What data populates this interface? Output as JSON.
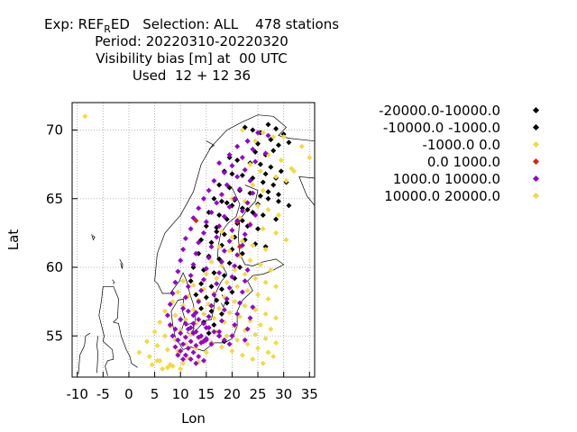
{
  "title": {
    "line1_prefix": "Exp: REF",
    "line1_sub": "R",
    "line1_suffix": "ED   Selection: ALL    478 stations",
    "line2": "Period: 20220310-20220320",
    "line3": "Visibility bias [m] at  00 UTC",
    "line4": "Used  12 + 12 36"
  },
  "chart_data": {
    "type": "scatter",
    "xlabel": "Lon",
    "ylabel": "Lat",
    "xlim": [
      -11,
      36
    ],
    "ylim": [
      52,
      72
    ],
    "xticks": [
      "-10",
      "-5",
      "0",
      "5",
      "10",
      "15",
      "20",
      "25",
      "30",
      "35"
    ],
    "yticks": [
      "55",
      "60",
      "65",
      "70"
    ],
    "grid": true,
    "legend_position": "right",
    "series": [
      {
        "name": "-20000.0-10000.0",
        "color": "#000000",
        "x": [],
        "y": []
      },
      {
        "name": "-10000.0 -1000.0",
        "color": "#000000",
        "x": [
          22.5,
          24.0,
          25.5,
          27.0,
          28.5,
          30.0,
          23.0,
          25.0,
          27.5,
          29.0,
          31.0,
          24.5,
          26.5,
          28.0,
          19.5,
          21.0,
          23.5,
          25.5,
          27.5,
          29.5,
          18.5,
          20.0,
          22.0,
          24.0,
          26.0,
          28.0,
          17.5,
          19.5,
          21.5,
          23.5,
          25.5,
          27.0,
          29.0,
          16.5,
          18.0,
          20.0,
          22.0,
          24.0,
          26.0,
          28.5,
          15.5,
          17.5,
          19.0,
          21.0,
          23.0,
          25.0,
          15.0,
          17.0,
          18.5,
          20.5,
          22.5,
          24.5,
          26.5,
          14.0,
          16.0,
          18.0,
          20.0,
          22.0,
          13.5,
          15.5,
          17.5,
          19.5,
          21.5,
          12.5,
          14.5,
          16.5,
          18.5,
          20.5,
          12.0,
          14.0,
          16.0,
          18.0,
          20.0,
          13.0,
          15.0,
          17.0,
          19.0,
          14.0,
          16.0,
          18.0,
          14.5,
          16.5,
          15.5,
          17.5,
          16.0,
          18.5,
          26.5,
          28.5,
          30.5,
          27.0,
          29.0,
          31.0,
          25.0,
          23.0,
          22.0,
          20.5,
          19.0,
          17.0
        ],
        "y": [
          70.2,
          70.0,
          69.8,
          70.4,
          70.1,
          69.7,
          69.2,
          69.0,
          69.3,
          68.9,
          69.1,
          68.4,
          68.2,
          68.5,
          68.0,
          67.8,
          67.6,
          67.5,
          67.3,
          67.0,
          67.0,
          66.8,
          66.7,
          66.5,
          66.2,
          66.0,
          66.0,
          65.8,
          65.6,
          65.4,
          65.2,
          65.0,
          64.8,
          65.0,
          64.8,
          64.5,
          64.3,
          64.0,
          63.8,
          63.5,
          64.0,
          63.8,
          63.5,
          63.2,
          63.0,
          62.8,
          63.0,
          62.6,
          62.4,
          62.2,
          62.0,
          61.7,
          61.5,
          62.0,
          61.8,
          61.6,
          61.3,
          61.0,
          61.0,
          60.8,
          60.6,
          60.3,
          60.0,
          60.0,
          59.8,
          59.6,
          59.4,
          59.2,
          59.0,
          58.8,
          58.6,
          58.4,
          58.2,
          58.0,
          57.8,
          57.6,
          57.4,
          57.0,
          56.8,
          56.6,
          56.0,
          55.8,
          55.2,
          55.0,
          54.5,
          54.6,
          66.8,
          66.5,
          66.2,
          65.5,
          65.3,
          64.5,
          64.6,
          64.2,
          63.4,
          64.9,
          64.7,
          62.9
        ]
      },
      {
        "name": "-1000.0 0.0",
        "color": "#f0dc3c",
        "x": [
          -8.5,
          22.0,
          26.0,
          30.0,
          33.5,
          35.0,
          31.5,
          28.0,
          24.5,
          21.0,
          27.0,
          29.5,
          32.0,
          23.5,
          25.5,
          28.5,
          30.5,
          24.0,
          26.0,
          20.0,
          22.5,
          25.0,
          27.0,
          29.0,
          21.5,
          23.5,
          26.0,
          28.5,
          30.5,
          18.0,
          20.0,
          22.0,
          24.0,
          26.5,
          17.5,
          19.5,
          21.5,
          23.5,
          25.5,
          27.5,
          16.0,
          18.0,
          20.5,
          22.5,
          24.5,
          26.5,
          28.5,
          15.0,
          17.0,
          19.0,
          21.0,
          23.0,
          25.0,
          27.0,
          10.5,
          12.5,
          14.5,
          16.5,
          18.5,
          20.5,
          22.5,
          24.5,
          26.5,
          28.5,
          9.5,
          11.5,
          13.5,
          15.5,
          17.5,
          19.5,
          21.5,
          23.5,
          25.5,
          27.5,
          8.5,
          10.5,
          12.5,
          14.5,
          16.5,
          18.5,
          20.5,
          22.5,
          24.5,
          26.5,
          28.5,
          7.0,
          9.0,
          11.0,
          13.0,
          15.0,
          17.0,
          19.0,
          21.0,
          23.0,
          25.0,
          27.0,
          6.0,
          8.0,
          10.0,
          12.0,
          14.0,
          16.0,
          18.0,
          20.0,
          22.0,
          24.0,
          26.0,
          28.0,
          5.0,
          7.0,
          9.0,
          11.0,
          13.0,
          15.0,
          3.5,
          5.5,
          7.5,
          9.5,
          11.5,
          13.5,
          2.0,
          4.0,
          6.0,
          8.0,
          10.0,
          12.0,
          4.5,
          6.5,
          8.5,
          10.5,
          5.5,
          7.5,
          9.5
        ],
        "y": [
          71.0,
          70.0,
          69.8,
          69.5,
          68.8,
          68.0,
          67.2,
          69.5,
          69.2,
          68.8,
          68.2,
          67.8,
          67.0,
          67.5,
          67.0,
          66.6,
          66.3,
          66.0,
          65.6,
          65.0,
          64.8,
          64.5,
          64.2,
          63.8,
          63.6,
          63.2,
          62.8,
          62.5,
          62.0,
          62.6,
          62.2,
          61.9,
          61.6,
          61.3,
          61.5,
          61.2,
          60.8,
          60.5,
          60.2,
          59.8,
          60.4,
          60.1,
          59.8,
          59.5,
          59.2,
          58.9,
          58.6,
          59.5,
          59.2,
          58.9,
          58.6,
          58.3,
          58.0,
          57.7,
          59.0,
          58.7,
          58.4,
          58.1,
          57.8,
          57.5,
          57.2,
          56.9,
          56.6,
          56.3,
          58.2,
          57.9,
          57.6,
          57.3,
          57.0,
          56.7,
          56.4,
          56.1,
          55.8,
          55.5,
          57.5,
          57.2,
          56.9,
          56.6,
          56.3,
          56.0,
          55.7,
          55.4,
          55.1,
          54.8,
          54.5,
          56.8,
          56.5,
          56.2,
          55.9,
          55.6,
          55.3,
          55.0,
          54.7,
          54.4,
          54.1,
          53.8,
          56.0,
          55.7,
          55.4,
          55.1,
          54.8,
          54.5,
          54.2,
          53.9,
          53.6,
          53.3,
          53.0,
          53.5,
          55.3,
          55.0,
          54.7,
          54.4,
          54.1,
          53.8,
          54.6,
          54.3,
          54.0,
          53.7,
          53.4,
          53.1,
          53.8,
          53.5,
          53.2,
          52.9,
          52.6,
          53.3,
          52.9,
          52.6,
          52.8,
          53.0,
          53.2,
          52.7,
          53.9
        ]
      },
      {
        "name": "0.0 1000.0",
        "color": "#e02000",
        "x": [
          13.0,
          21.0,
          21.5
        ],
        "y": [
          63.4,
          63.3,
          61.5
        ]
      },
      {
        "name": "1000.0 10000.0",
        "color": "#9400d3",
        "x": [
          25.0,
          27.0,
          23.0,
          21.0,
          24.0,
          26.5,
          19.5,
          22.0,
          24.5,
          17.5,
          20.0,
          22.5,
          18.5,
          21.0,
          23.5,
          16.5,
          19.0,
          21.5,
          24.0,
          15.5,
          18.0,
          20.5,
          23.0,
          14.5,
          17.0,
          19.5,
          22.0,
          24.5,
          13.5,
          16.0,
          18.5,
          21.0,
          23.5,
          12.5,
          15.0,
          17.5,
          20.0,
          22.5,
          12.0,
          14.5,
          17.0,
          19.5,
          22.0,
          11.0,
          13.5,
          16.0,
          18.5,
          21.0,
          10.5,
          13.0,
          15.5,
          18.0,
          20.5,
          23.0,
          10.0,
          12.5,
          15.0,
          17.5,
          20.0,
          22.5,
          9.5,
          12.0,
          14.5,
          17.0,
          19.5,
          22.0,
          9.0,
          11.5,
          14.0,
          16.5,
          19.0,
          21.5,
          24.0,
          8.5,
          11.0,
          13.5,
          16.0,
          18.5,
          21.0,
          23.5,
          8.0,
          10.5,
          13.0,
          15.5,
          18.0,
          20.5,
          23.0,
          7.5,
          10.0,
          12.5,
          15.0,
          17.5,
          20.0,
          22.5,
          8.0,
          9.0,
          10.0,
          11.0,
          12.0,
          13.0,
          8.5,
          9.5,
          10.5,
          11.5,
          12.5,
          13.5,
          14.5,
          9.0,
          10.0,
          11.0,
          12.0,
          13.0,
          14.0,
          15.0,
          9.5,
          10.5,
          11.5,
          12.5,
          13.5,
          14.5,
          10.0,
          11.0,
          12.0,
          13.0,
          14.0,
          15.0,
          16.0,
          11.5,
          12.5,
          13.5,
          14.5,
          15.5,
          16.5,
          17.5,
          18.5,
          19.5
        ],
        "y": [
          69.8,
          69.6,
          69.2,
          68.8,
          68.6,
          68.3,
          68.2,
          68.0,
          67.7,
          67.6,
          67.4,
          67.1,
          66.9,
          66.6,
          66.3,
          66.3,
          66.0,
          65.7,
          65.4,
          65.6,
          65.3,
          65.0,
          64.7,
          65.0,
          64.7,
          64.4,
          64.1,
          63.8,
          64.3,
          64.0,
          63.7,
          63.4,
          63.1,
          63.6,
          63.3,
          63.0,
          62.7,
          62.4,
          62.8,
          62.5,
          62.2,
          61.9,
          61.6,
          62.1,
          61.8,
          61.5,
          61.2,
          60.9,
          61.3,
          61.0,
          60.7,
          60.4,
          60.1,
          59.8,
          60.5,
          60.2,
          59.9,
          59.6,
          59.3,
          59.0,
          59.7,
          59.4,
          59.1,
          58.8,
          58.5,
          58.2,
          58.9,
          58.6,
          58.3,
          58.0,
          57.7,
          57.4,
          57.1,
          58.1,
          57.8,
          57.5,
          57.2,
          56.9,
          56.6,
          56.3,
          57.3,
          57.0,
          56.7,
          56.4,
          56.1,
          55.8,
          55.5,
          56.5,
          56.2,
          55.9,
          55.6,
          55.3,
          55.0,
          54.7,
          55.8,
          55.5,
          55.2,
          54.9,
          54.6,
          54.3,
          55.0,
          54.7,
          54.4,
          54.1,
          53.8,
          53.5,
          53.2,
          54.2,
          53.9,
          53.6,
          53.3,
          53.0,
          54.5,
          54.8,
          53.6,
          53.3,
          55.5,
          55.2,
          54.9,
          54.6,
          56.2,
          55.9,
          55.6,
          55.3,
          55.0,
          54.7,
          54.4,
          56.8,
          56.5,
          56.2,
          55.9,
          55.6,
          55.3,
          55.0,
          54.7,
          54.4
        ]
      },
      {
        "name": "10000.0 20000.0",
        "color": "#f0dc3c",
        "x": [],
        "y": []
      }
    ]
  }
}
